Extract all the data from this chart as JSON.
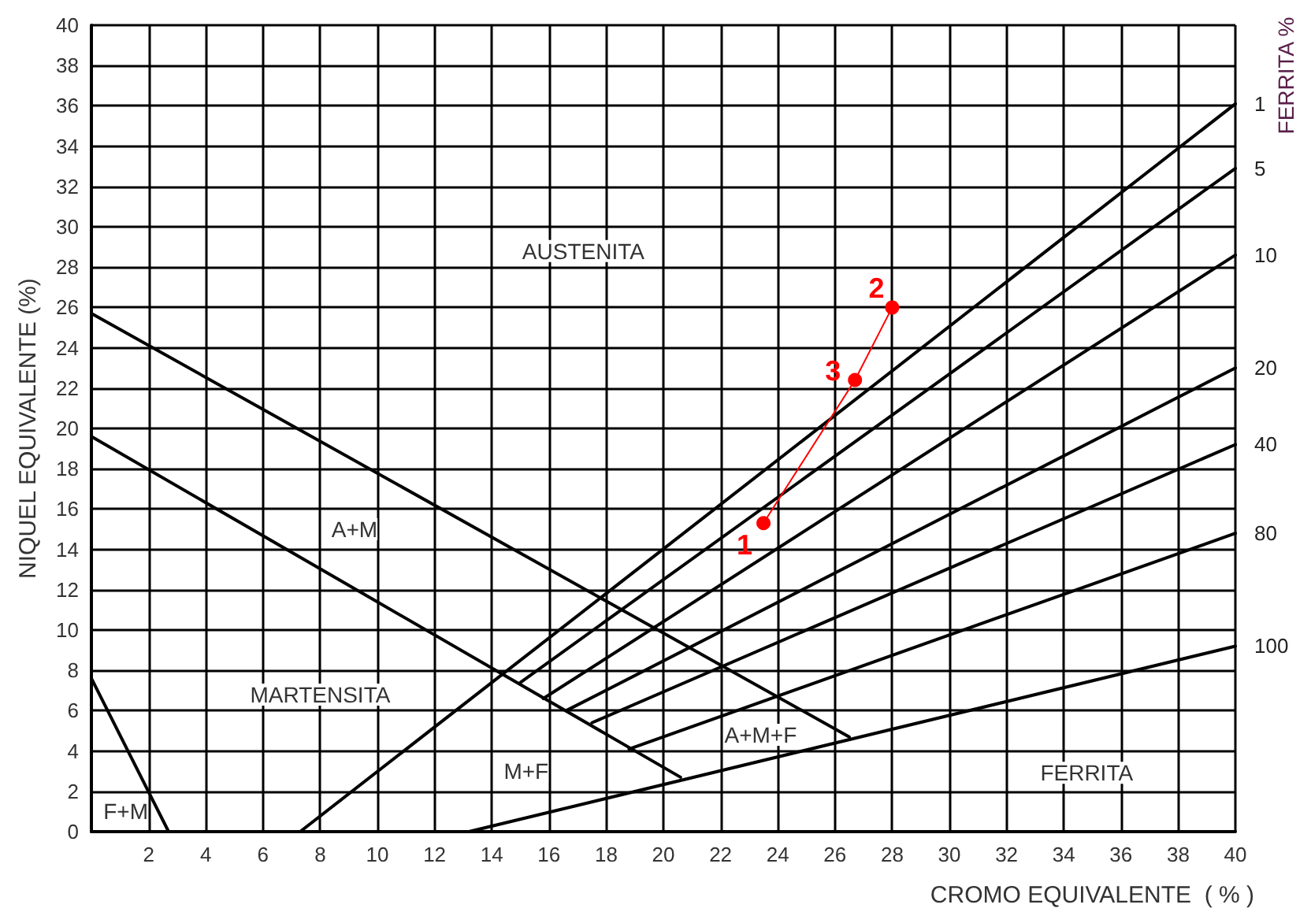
{
  "chart_data": {
    "type": "line",
    "xlabel": "CROMO EQUIVALENTE  ( % )",
    "ylabel": "NIQUEL EQUIVALENTE (%)",
    "y2label": "FERRITA %",
    "xlim": [
      0,
      40
    ],
    "ylim": [
      0,
      40
    ],
    "xticks": [
      {
        "value": 0,
        "label": null
      },
      2,
      4,
      6,
      8,
      10,
      12,
      14,
      16,
      18,
      20,
      22,
      24,
      26,
      28,
      30,
      32,
      34,
      36,
      38,
      40
    ],
    "yticks": [
      0,
      2,
      4,
      6,
      8,
      10,
      12,
      14,
      16,
      18,
      20,
      22,
      24,
      26,
      28,
      30,
      32,
      34,
      36,
      38,
      40
    ],
    "grid": true,
    "legend": false,
    "line_style": "solid",
    "marker": "none",
    "series": [
      {
        "color": "#000000",
        "x": [
          0,
          26.5
        ],
        "values": [
          25.7,
          4.7
        ]
      },
      {
        "color": "#000000",
        "x": [
          0,
          20.6
        ],
        "values": [
          19.6,
          2.7
        ]
      },
      {
        "color": "#000000",
        "x": [
          0,
          2.7
        ],
        "values": [
          7.6,
          0
        ]
      },
      {
        "name": "1",
        "color": "#000000",
        "x": [
          7.3,
          40
        ],
        "values": [
          0,
          36.1
        ]
      },
      {
        "name": "5",
        "color": "#000000",
        "x": [
          15,
          40
        ],
        "values": [
          7.4,
          32.9
        ]
      },
      {
        "name": "10",
        "color": "#000000",
        "x": [
          15.8,
          40
        ],
        "values": [
          6.6,
          28.6
        ]
      },
      {
        "name": "20",
        "color": "#000000",
        "x": [
          16.6,
          40
        ],
        "values": [
          6,
          23
        ]
      },
      {
        "name": "40",
        "color": "#000000",
        "x": [
          17.5,
          40
        ],
        "values": [
          5.4,
          19.2
        ]
      },
      {
        "name": "80",
        "color": "#000000",
        "x": [
          18.8,
          40
        ],
        "values": [
          4.1,
          14.8
        ]
      },
      {
        "name": "100",
        "color": "#000000",
        "x": [
          13.2,
          40
        ],
        "values": [
          0,
          9.2
        ]
      },
      {
        "color": "#ff0000",
        "marker": "circle",
        "x": [
          23.5,
          26.7,
          28
        ],
        "values": [
          15.3,
          22.4,
          26
        ]
      }
    ],
    "annotations": [
      "AUSTENITA",
      "A+M",
      "MARTENSITA",
      "M+F",
      "A+M+F",
      "FERRITA",
      "F+M",
      {
        "text": "1",
        "x": 23.5,
        "y": 15.3
      },
      {
        "text": "2",
        "x": 28,
        "y": 26
      },
      {
        "text": "3",
        "x": 26.7,
        "y": 22.4
      }
    ]
  }
}
